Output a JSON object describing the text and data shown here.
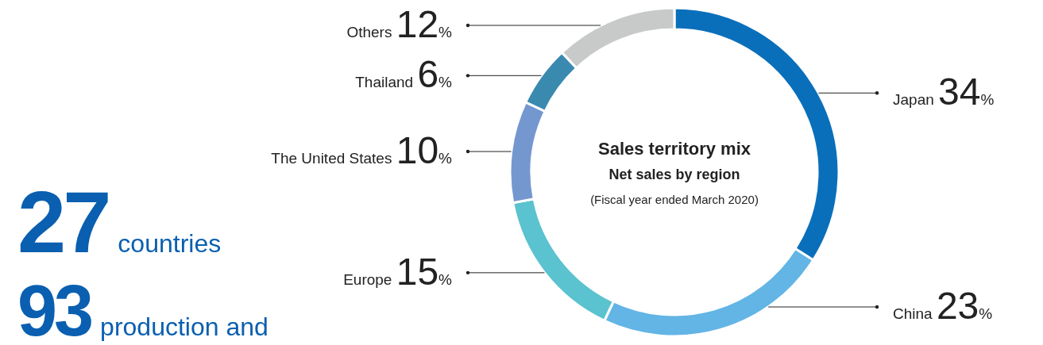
{
  "chart_data": {
    "type": "donut",
    "title": "Sales territory mix",
    "subtitle": "Net sales by region",
    "annotations": [
      "(Fiscal year ended March 2020)",
      "27",
      "countries",
      "93",
      "production and"
    ],
    "categories": [
      "Japan",
      "China",
      "Europe",
      "The United States",
      "Thailand",
      "Others"
    ],
    "values": [
      34,
      23,
      15,
      10,
      6,
      12
    ],
    "value_labels": [
      "34%",
      "23%",
      "15%",
      "10%",
      "6%",
      "12%"
    ],
    "colors": [
      "#0a6fba",
      "#62b5e5",
      "#5bc2cf",
      "#7597d0",
      "#3a8ab0",
      "#c8caca"
    ]
  }
}
